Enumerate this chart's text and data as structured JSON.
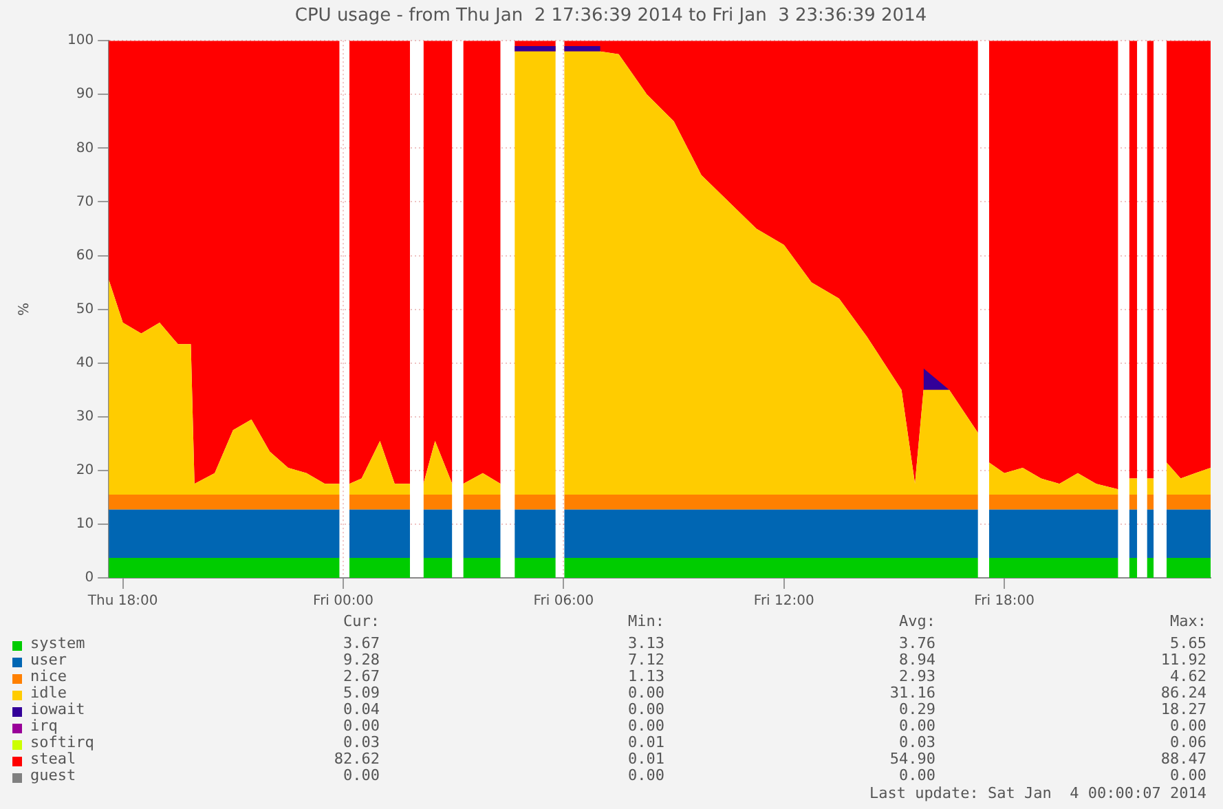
{
  "chart_data": {
    "type": "area",
    "stacked": true,
    "title": "CPU usage - from Thu Jan  2 17:36:39 2014 to Fri Jan  3 23:36:39 2014",
    "ylabel": "%",
    "x": [
      "2014-01-02T17:37",
      "2014-01-02T18:00",
      "2014-01-02T18:30",
      "2014-01-02T19:00",
      "2014-01-02T19:30",
      "2014-01-02T19:51",
      "2014-01-02T19:57",
      "2014-01-02T20:30",
      "2014-01-02T21:00",
      "2014-01-02T21:30",
      "2014-01-02T22:00",
      "2014-01-02T22:30",
      "2014-01-02T23:00",
      "2014-01-02T23:30",
      "2014-01-02T23:54",
      "2014-01-03T00:02",
      "2014-01-03T00:10",
      "2014-01-03T00:30",
      "2014-01-03T01:00",
      "2014-01-03T01:24",
      "2014-01-03T01:49",
      "2014-01-03T02:00",
      "2014-01-03T02:11",
      "2014-01-03T02:30",
      "2014-01-03T02:58",
      "2014-01-03T03:07",
      "2014-01-03T03:16",
      "2014-01-03T03:48",
      "2014-01-03T04:17",
      "2014-01-03T04:28",
      "2014-01-03T04:40",
      "2014-01-03T05:12",
      "2014-01-03T05:47",
      "2014-01-03T05:54",
      "2014-01-03T06:01",
      "2014-01-03T07:00",
      "2014-01-03T07:30",
      "2014-01-03T08:16",
      "2014-01-03T09:00",
      "2014-01-03T09:45",
      "2014-01-03T10:30",
      "2014-01-03T11:15",
      "2014-01-03T12:00",
      "2014-01-03T12:45",
      "2014-01-03T13:30",
      "2014-01-03T14:15",
      "2014-01-03T15:12",
      "2014-01-03T15:34",
      "2014-01-03T15:48",
      "2014-01-03T16:30",
      "2014-01-03T17:17",
      "2014-01-03T17:26",
      "2014-01-03T17:35",
      "2014-01-03T18:00",
      "2014-01-03T18:30",
      "2014-01-03T19:00",
      "2014-01-03T19:30",
      "2014-01-03T20:00",
      "2014-01-03T20:30",
      "2014-01-03T21:06",
      "2014-01-03T21:15",
      "2014-01-03T21:24",
      "2014-01-03T21:37",
      "2014-01-03T21:45",
      "2014-01-03T21:53",
      "2014-01-03T22:04",
      "2014-01-03T22:14",
      "2014-01-03T22:25",
      "2014-01-03T22:48",
      "2014-01-03T23:12",
      "2014-01-03T23:37"
    ],
    "xlim": [
      "2014-01-02T17:37",
      "2014-01-03T23:37"
    ],
    "xticks": [
      {
        "value": "2014-01-02T18:00",
        "label": "Thu 18:00"
      },
      {
        "value": "2014-01-03T00:00",
        "label": "Fri 00:00"
      },
      {
        "value": "2014-01-03T06:00",
        "label": "Fri 06:00"
      },
      {
        "value": "2014-01-03T12:00",
        "label": "Fri 12:00"
      },
      {
        "value": "2014-01-03T18:00",
        "label": "Fri 18:00"
      }
    ],
    "ylim": [
      0,
      100
    ],
    "yticks": [
      0,
      10,
      20,
      30,
      40,
      50,
      60,
      70,
      80,
      90,
      100
    ],
    "grid": true,
    "legend": "bottom",
    "series": [
      {
        "name": "system",
        "color": "#00cc00",
        "values": [
          3.7,
          3.7,
          3.7,
          3.7,
          3.7,
          3.7,
          3.7,
          3.7,
          3.7,
          3.7,
          3.7,
          3.7,
          3.7,
          3.7,
          3.7,
          null,
          3.7,
          3.7,
          3.7,
          3.7,
          3.7,
          null,
          3.7,
          3.7,
          3.7,
          null,
          3.7,
          3.7,
          3.7,
          null,
          3.7,
          3.7,
          3.7,
          null,
          3.7,
          3.7,
          3.7,
          3.7,
          3.7,
          3.7,
          3.7,
          3.7,
          3.7,
          3.7,
          3.7,
          3.7,
          3.7,
          3.7,
          3.7,
          3.7,
          3.7,
          null,
          3.7,
          3.7,
          3.7,
          3.7,
          3.7,
          3.7,
          3.7,
          3.7,
          null,
          3.7,
          3.7,
          null,
          3.7,
          3.7,
          null,
          3.7,
          3.7,
          3.7,
          3.7
        ]
      },
      {
        "name": "user",
        "color": "#0066b3",
        "values": [
          9,
          9,
          9,
          9,
          9,
          9,
          9,
          9,
          9,
          9,
          9,
          9,
          9,
          9,
          9,
          null,
          9,
          9,
          9,
          9,
          9,
          null,
          9,
          9,
          9,
          null,
          9,
          9,
          9,
          null,
          9,
          9,
          9,
          null,
          9,
          9,
          9,
          9,
          9,
          9,
          9,
          9,
          9,
          9,
          9,
          9,
          9,
          9,
          9,
          9,
          9,
          null,
          9,
          9,
          9,
          9,
          9,
          9,
          9,
          9,
          null,
          9,
          9,
          null,
          9,
          9,
          null,
          9,
          9,
          9,
          9
        ]
      },
      {
        "name": "nice",
        "color": "#ff8000",
        "values": [
          2.8,
          2.8,
          2.8,
          2.8,
          2.8,
          2.8,
          2.8,
          2.8,
          2.8,
          2.8,
          2.8,
          2.8,
          2.8,
          2.8,
          2.8,
          null,
          2.8,
          2.8,
          2.8,
          2.8,
          2.8,
          null,
          2.8,
          2.8,
          2.8,
          null,
          2.8,
          2.8,
          2.8,
          null,
          2.8,
          2.8,
          2.8,
          null,
          2.8,
          2.8,
          2.8,
          2.8,
          2.8,
          2.8,
          2.8,
          2.8,
          2.8,
          2.8,
          2.8,
          2.8,
          2.8,
          2.8,
          2.8,
          2.8,
          2.8,
          null,
          2.8,
          2.8,
          2.8,
          2.8,
          2.8,
          2.8,
          2.8,
          2.8,
          null,
          2.8,
          2.8,
          null,
          2.8,
          2.8,
          null,
          2.8,
          2.8,
          2.8,
          2.8
        ]
      },
      {
        "name": "idle",
        "color": "#ffcc00",
        "values": [
          40,
          32,
          30,
          32,
          28,
          28,
          2,
          4,
          12,
          14,
          8,
          5,
          4,
          2,
          2,
          null,
          2,
          3,
          10,
          2,
          2,
          null,
          2,
          10,
          2,
          null,
          2,
          4,
          2,
          null,
          82.5,
          82.5,
          82.5,
          null,
          82.5,
          82.5,
          82,
          74.5,
          69.5,
          59.5,
          54.5,
          49.5,
          46.5,
          39.5,
          36.5,
          29.5,
          19.5,
          2,
          19.5,
          19.5,
          11.5,
          null,
          6,
          4,
          5,
          3,
          2,
          4,
          2,
          1,
          null,
          3,
          3,
          null,
          3,
          3,
          null,
          6,
          3,
          4,
          5
        ]
      },
      {
        "name": "iowait",
        "color": "#330099",
        "values": [
          null,
          null,
          null,
          null,
          null,
          null,
          null,
          null,
          null,
          null,
          null,
          null,
          null,
          null,
          null,
          null,
          null,
          null,
          null,
          null,
          null,
          null,
          null,
          null,
          null,
          null,
          null,
          null,
          null,
          null,
          1,
          1,
          1,
          null,
          1,
          1,
          null,
          null,
          null,
          null,
          null,
          null,
          null,
          null,
          null,
          null,
          null,
          null,
          4,
          0,
          null,
          null,
          null,
          null,
          null,
          null,
          null,
          null,
          null,
          null,
          null,
          null,
          null,
          null,
          null,
          null,
          null,
          null,
          null,
          null,
          null
        ]
      },
      {
        "name": "irq",
        "color": "#990099",
        "values": [
          null,
          null,
          null,
          null,
          null,
          null,
          null,
          null,
          null,
          null,
          null,
          null,
          null,
          null,
          null,
          null,
          null,
          null,
          null,
          null,
          null,
          null,
          null,
          null,
          null,
          null,
          null,
          null,
          null,
          null,
          null,
          null,
          null,
          null,
          null,
          null,
          null,
          null,
          null,
          null,
          null,
          null,
          null,
          null,
          null,
          null,
          null,
          null,
          null,
          null,
          null,
          null,
          null,
          null,
          null,
          null,
          null,
          null,
          null,
          null,
          null,
          null,
          null,
          null,
          null,
          null,
          null,
          null,
          null,
          null,
          null
        ]
      },
      {
        "name": "softirq",
        "color": "#ccff00",
        "values": [
          null,
          null,
          null,
          null,
          null,
          null,
          null,
          null,
          null,
          null,
          null,
          null,
          null,
          null,
          null,
          null,
          null,
          null,
          null,
          null,
          null,
          null,
          null,
          null,
          null,
          null,
          null,
          null,
          null,
          null,
          null,
          null,
          null,
          null,
          null,
          null,
          null,
          null,
          null,
          null,
          null,
          null,
          null,
          null,
          null,
          null,
          null,
          null,
          null,
          null,
          null,
          null,
          null,
          null,
          null,
          null,
          null,
          null,
          null,
          null,
          null,
          null,
          null,
          null,
          null,
          null,
          null,
          null,
          null,
          null,
          null
        ]
      },
      {
        "name": "steal",
        "color": "#ff0000",
        "values": [
          44.5,
          52.5,
          54.5,
          52.5,
          56.5,
          56.5,
          82.5,
          80.5,
          72.5,
          70.5,
          76.5,
          79.5,
          80.5,
          82.5,
          82.5,
          null,
          82.5,
          81.5,
          74.5,
          82.5,
          82.5,
          null,
          82.5,
          74.5,
          82.5,
          null,
          82.5,
          80.5,
          82.5,
          null,
          1,
          1,
          1,
          null,
          1,
          1,
          2.5,
          10,
          15,
          25,
          30,
          35,
          38,
          45,
          48,
          55,
          65,
          82.5,
          61,
          65,
          73,
          null,
          78.5,
          80.5,
          79.5,
          81.5,
          82.5,
          80.5,
          82.5,
          83.5,
          null,
          81.5,
          81.5,
          null,
          81.5,
          81.5,
          null,
          78.5,
          81.5,
          80.5,
          79.5
        ]
      },
      {
        "name": "guest",
        "color": "#808080",
        "values": [
          null,
          null,
          null,
          null,
          null,
          null,
          null,
          null,
          null,
          null,
          null,
          null,
          null,
          null,
          null,
          null,
          null,
          null,
          null,
          null,
          null,
          null,
          null,
          null,
          null,
          null,
          null,
          null,
          null,
          null,
          null,
          null,
          null,
          null,
          null,
          null,
          null,
          null,
          null,
          null,
          null,
          null,
          null,
          null,
          null,
          null,
          null,
          null,
          null,
          null,
          null,
          null,
          null,
          null,
          null,
          null,
          null,
          null,
          null,
          null,
          null,
          null,
          null,
          null,
          null,
          null,
          null,
          null,
          null,
          null,
          null
        ]
      }
    ],
    "annotations": [
      "Cur:",
      "Min:",
      "Avg:",
      "Max:",
      "3.67",
      "3.13",
      "3.76",
      "5.65",
      "9.28",
      "7.12",
      "8.94",
      "11.92",
      "2.67",
      "1.13",
      "2.93",
      "4.62",
      "5.09",
      "0.00",
      "31.16",
      "86.24",
      "0.04",
      "0.00",
      "0.29",
      "18.27",
      "0.00",
      "0.00",
      "0.00",
      "0.00",
      "0.03",
      "0.01",
      "0.03",
      "0.06",
      "82.62",
      "0.01",
      "54.90",
      "88.47",
      "0.00",
      "0.00",
      "0.00",
      "0.00",
      "Last update: Sat Jan  4 00:00:07 2014"
    ]
  }
}
